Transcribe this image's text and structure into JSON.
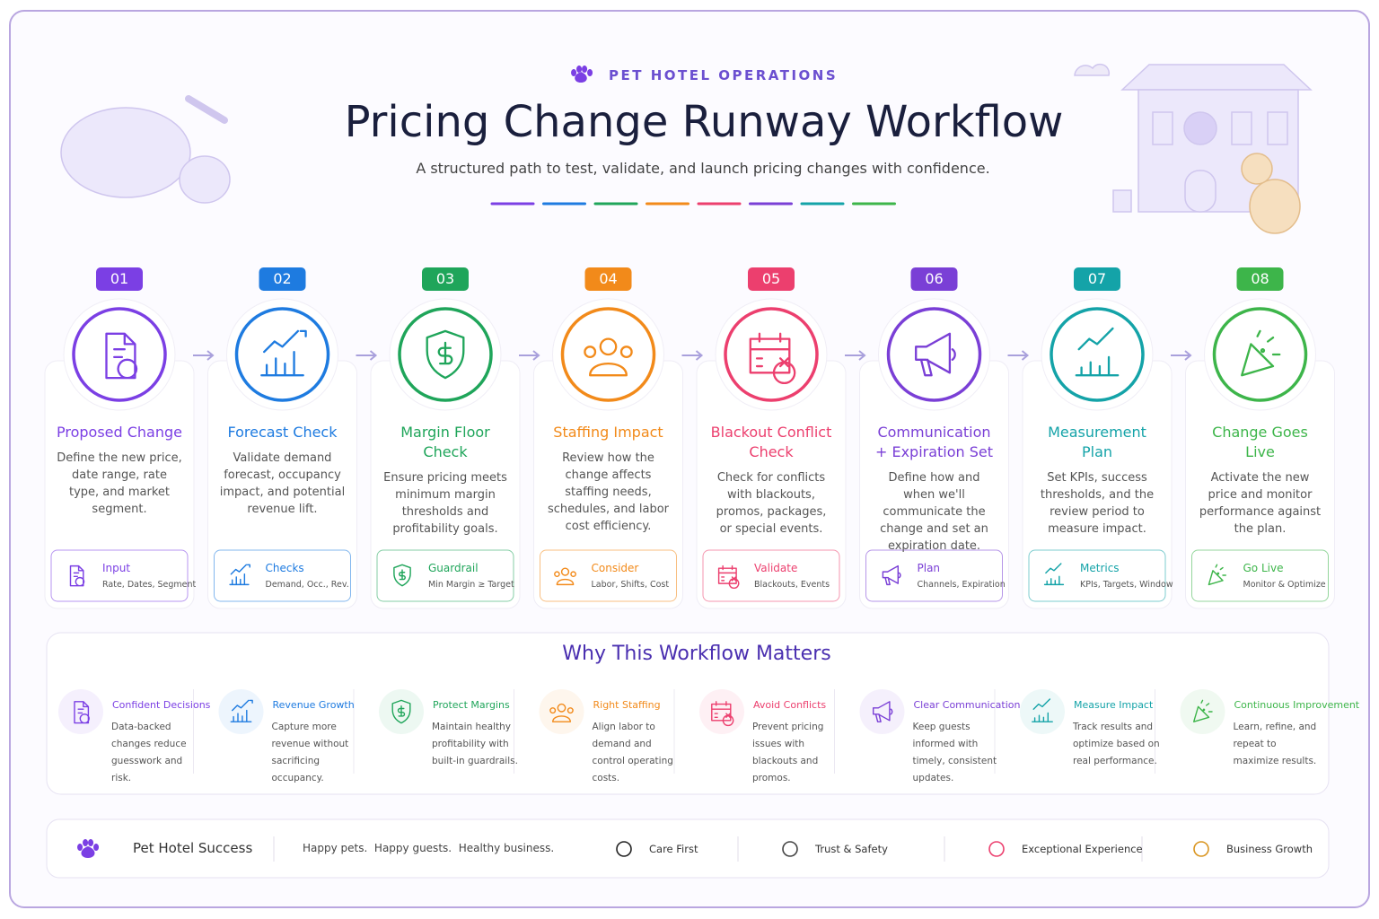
{
  "header": {
    "eyebrow": "PET HOTEL OPERATIONS",
    "title": "Pricing Change Runway Workflow",
    "subtitle": "A structured path to test, validate, and launch pricing changes with confidence."
  },
  "steps": [
    {
      "number": "01",
      "title": "Proposed Change",
      "description": "Define the new price, date range, rate type, and market segment.",
      "tag": {
        "title": "Input",
        "subtitle": "Rate, Dates, Segment"
      }
    },
    {
      "number": "02",
      "title": "Forecast Check",
      "description": "Validate demand forecast, occupancy impact, and potential revenue lift.",
      "tag": {
        "title": "Checks",
        "subtitle": "Demand, Occ., Rev."
      }
    },
    {
      "number": "03",
      "title": "Margin Floor Check",
      "description": "Ensure pricing meets minimum margin thresholds and profitability goals.",
      "tag": {
        "title": "Guardrail",
        "subtitle": "Min Margin ≥ Target"
      }
    },
    {
      "number": "04",
      "title": "Staffing Impact",
      "description": "Review how the change affects staffing needs, schedules, and labor cost efficiency.",
      "tag": {
        "title": "Consider",
        "subtitle": "Labor, Shifts, Cost"
      }
    },
    {
      "number": "05",
      "title": "Blackout Conflict Check",
      "description": "Check for conflicts with blackouts, promos, packages, or special events.",
      "tag": {
        "title": "Validate",
        "subtitle": "Blackouts, Events"
      }
    },
    {
      "number": "06",
      "title": "Communication + Expiration Set",
      "description": "Define how and when we'll communicate the change and set an expiration date.",
      "tag": {
        "title": "Plan",
        "subtitle": "Channels, Expiration"
      }
    },
    {
      "number": "07",
      "title": "Measurement Plan",
      "description": "Set KPIs, success thresholds, and the review period to measure impact.",
      "tag": {
        "title": "Metrics",
        "subtitle": "KPIs, Targets, Window"
      }
    },
    {
      "number": "08",
      "title": "Change Goes Live",
      "description": "Activate the new price and monitor performance against the plan.",
      "tag": {
        "title": "Go Live",
        "subtitle": "Monitor & Optimize"
      }
    }
  ],
  "benefits": {
    "title": "Why This Workflow Matters",
    "items": [
      {
        "title": "Confident Decisions",
        "text": "Data-backed changes reduce guesswork and risk."
      },
      {
        "title": "Revenue Growth",
        "text": "Capture more revenue without sacrificing occupancy."
      },
      {
        "title": "Protect Margins",
        "text": "Maintain healthy profitability with built-in guardrails."
      },
      {
        "title": "Right Staffing",
        "text": "Align labor to demand and control operating costs."
      },
      {
        "title": "Avoid Conflicts",
        "text": "Prevent pricing issues with blackouts and promos."
      },
      {
        "title": "Clear Communication",
        "text": "Keep guests informed with timely, consistent updates."
      },
      {
        "title": "Measure Impact",
        "text": "Track results and optimize based on real performance."
      },
      {
        "title": "Continuous Improvement",
        "text": "Learn, refine, and repeat to maximize results."
      }
    ]
  },
  "footer": {
    "brand": "Pet Hotel Success",
    "tagline": "Happy pets.  Happy guests.  Healthy business.",
    "values": [
      "Care First",
      "Trust & Safety",
      "Exceptional Experience",
      "Business Growth"
    ]
  }
}
